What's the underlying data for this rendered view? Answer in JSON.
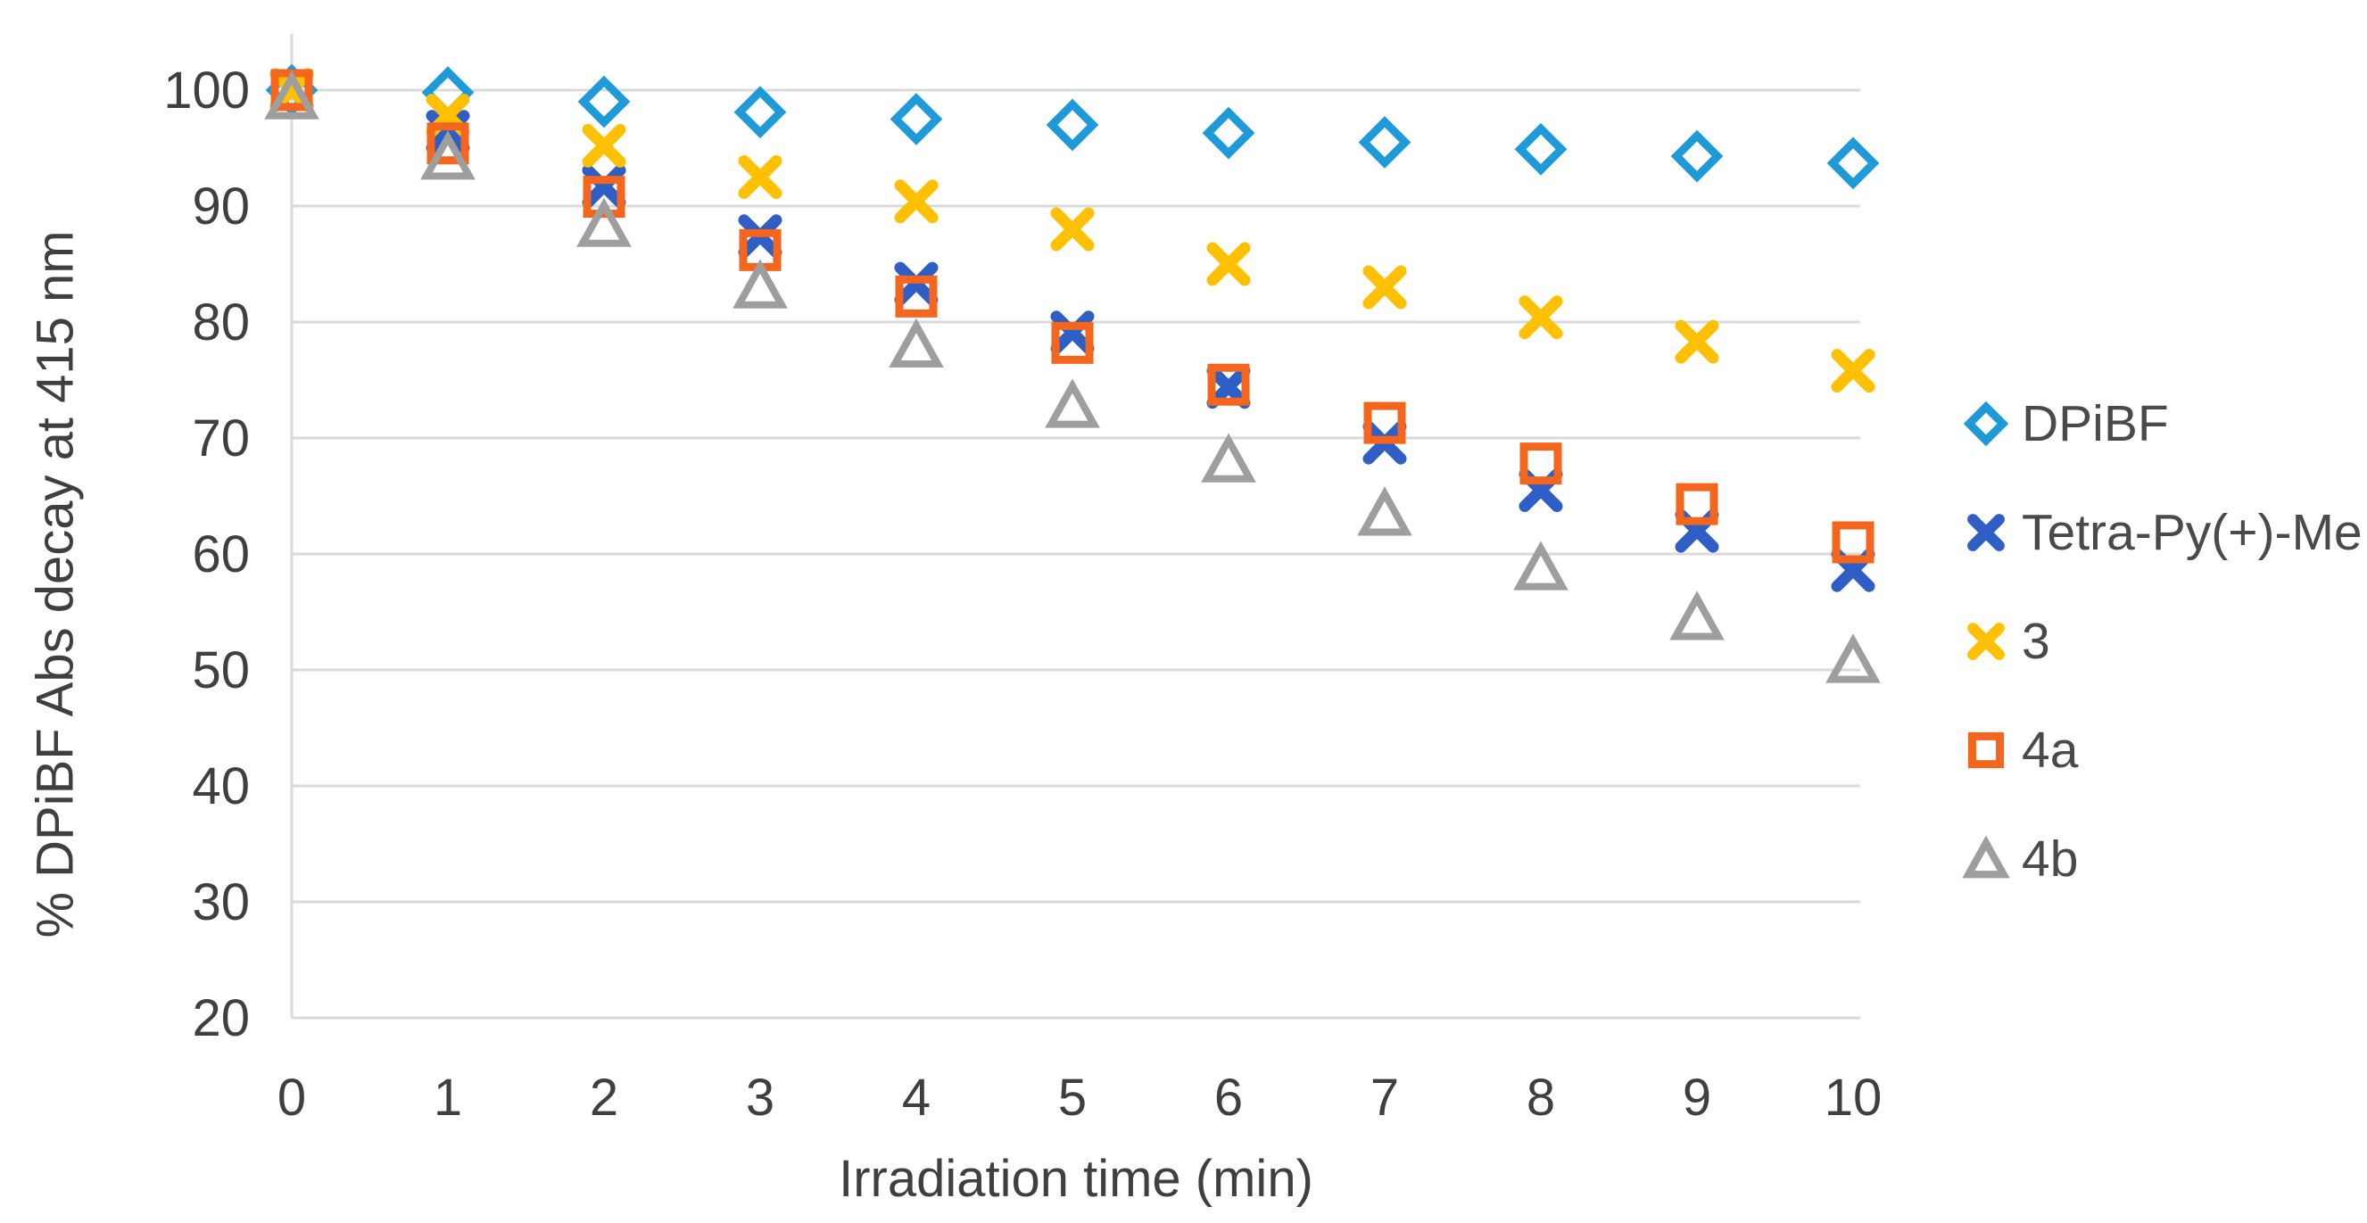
{
  "chart_data": {
    "type": "scatter",
    "title": "",
    "xlabel": "Irradiation time (min)",
    "ylabel": "% DPiBF Abs decay at 415 nm",
    "xlim": [
      0,
      10
    ],
    "ylim": [
      20,
      100
    ],
    "xticks": [
      0,
      1,
      2,
      3,
      4,
      5,
      6,
      7,
      8,
      9,
      10
    ],
    "yticks": [
      100,
      90,
      80,
      70,
      60,
      50,
      40,
      30,
      20
    ],
    "grid": "horizontal",
    "legend_position": "right",
    "gridline_color": "#d9d9d9",
    "axis_text_color": "#3f3f3f",
    "x": [
      0,
      1,
      2,
      3,
      4,
      5,
      6,
      7,
      8,
      9,
      10
    ],
    "series": [
      {
        "name": "DPiBF",
        "marker": "diamond",
        "color": "#1f9ad8",
        "values": [
          100,
          99.8,
          99.0,
          98.1,
          97.5,
          97.0,
          96.3,
          95.5,
          94.9,
          94.3,
          93.7
        ]
      },
      {
        "name": "Tetra-Py(+)-Me",
        "marker": "x",
        "color": "#2e5ec6",
        "values": [
          100,
          96.4,
          91.7,
          87.4,
          83.3,
          79.1,
          74.4,
          69.6,
          65.5,
          62.0,
          58.6
        ]
      },
      {
        "name": "3",
        "marker": "x",
        "color": "#ffc000",
        "values": [
          100,
          97.8,
          95.2,
          92.5,
          90.4,
          88.0,
          85.0,
          83.0,
          80.4,
          78.3,
          75.8
        ]
      },
      {
        "name": "4a",
        "marker": "square",
        "color": "#f4661d",
        "values": [
          100,
          95.4,
          90.8,
          86.2,
          82.2,
          78.2,
          74.6,
          71.3,
          67.8,
          64.3,
          61.0
        ]
      },
      {
        "name": "4b",
        "marker": "triangle",
        "color": "#9e9e9e",
        "values": [
          99.4,
          94.2,
          88.4,
          83.1,
          78.0,
          72.8,
          68.1,
          63.5,
          58.8,
          54.5,
          50.8
        ]
      }
    ]
  }
}
